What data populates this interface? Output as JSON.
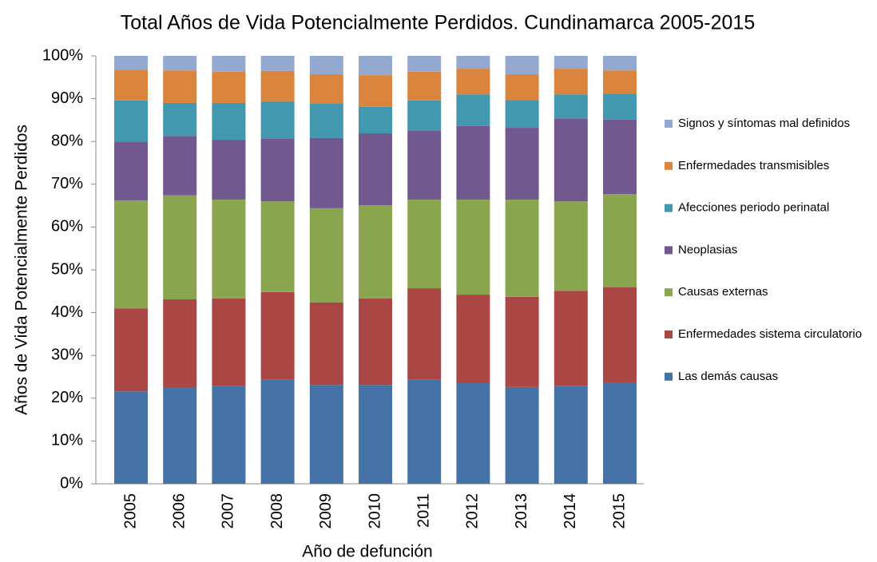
{
  "chart_data": {
    "type": "stacked_bar_100",
    "title": "Total Años de Vida Potencialmente Perdidos. Cundinamarca 2005-2015",
    "x_label": "Año de defunción",
    "y_label": "Años de Vida Potencialmente Perdidos",
    "categories": [
      "2005",
      "2006",
      "2007",
      "2008",
      "2009",
      "2010",
      "2011",
      "2012",
      "2013",
      "2014",
      "2015"
    ],
    "series": [
      {
        "name": "Las demás causas",
        "color": "#4572a7",
        "values": [
          21.6,
          22.4,
          22.8,
          24.3,
          23.1,
          23.1,
          24.3,
          23.5,
          22.6,
          22.9,
          23.7
        ]
      },
      {
        "name": "Enfermedades sistema circulatorio",
        "color": "#aa4643",
        "values": [
          19.4,
          20.7,
          20.5,
          20.5,
          19.3,
          20.2,
          21.4,
          20.7,
          21.1,
          22.2,
          22.2
        ]
      },
      {
        "name": "Causas externas",
        "color": "#89a54e",
        "values": [
          25.2,
          24.3,
          23.1,
          21.2,
          22.0,
          21.8,
          20.7,
          22.2,
          22.7,
          20.9,
          21.8
        ]
      },
      {
        "name": "Neoplasias",
        "color": "#71588f",
        "values": [
          13.8,
          13.9,
          14.0,
          14.6,
          16.4,
          16.8,
          16.2,
          17.2,
          16.8,
          19.4,
          17.4
        ]
      },
      {
        "name": "Afecciones periodo perinatal",
        "color": "#4198af",
        "values": [
          9.6,
          7.7,
          8.6,
          8.8,
          8.0,
          6.2,
          7.0,
          7.4,
          6.5,
          5.6,
          6.1
        ]
      },
      {
        "name": "Enfermedades transmisibles",
        "color": "#db843d",
        "values": [
          7.2,
          7.6,
          7.3,
          7.1,
          6.9,
          7.4,
          6.7,
          6.0,
          6.0,
          6.0,
          5.4
        ]
      },
      {
        "name": "Signos y síntomas mal definidos",
        "color": "#93a9cf",
        "values": [
          3.2,
          3.4,
          3.7,
          3.5,
          4.3,
          4.5,
          3.7,
          3.0,
          4.3,
          3.0,
          3.4
        ]
      }
    ],
    "ylim": [
      0,
      100
    ],
    "yticks": [
      {
        "value": 0,
        "label": "0%"
      },
      {
        "value": 10,
        "label": "10%"
      },
      {
        "value": 20,
        "label": "20%"
      },
      {
        "value": 30,
        "label": "30%"
      },
      {
        "value": 40,
        "label": "40%"
      },
      {
        "value": 50,
        "label": "50%"
      },
      {
        "value": 60,
        "label": "60%"
      },
      {
        "value": 70,
        "label": "70%"
      },
      {
        "value": 80,
        "label": "80%"
      },
      {
        "value": 90,
        "label": "90%"
      },
      {
        "value": 100,
        "label": "100%"
      }
    ],
    "legend": "right"
  }
}
